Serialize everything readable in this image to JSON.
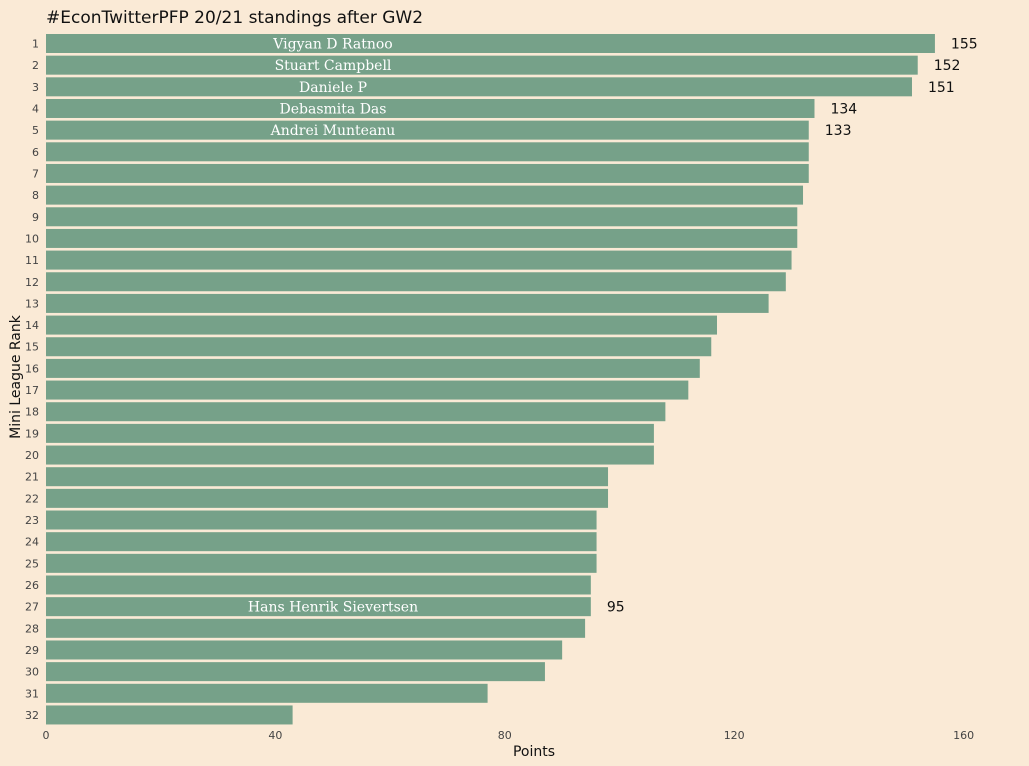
{
  "chart_data": {
    "type": "bar",
    "orientation": "horizontal",
    "title": "#EconTwitterPFP 20/21 standings after GW2",
    "xlabel": "Points",
    "ylabel": "Mini League Rank",
    "xlim": [
      0,
      170
    ],
    "x_ticks": [
      0,
      40,
      80,
      120,
      160
    ],
    "grid": false,
    "bar_color": "#76a189",
    "background_color": "#faead6",
    "categories": [
      "1",
      "2",
      "3",
      "4",
      "5",
      "6",
      "7",
      "8",
      "9",
      "10",
      "11",
      "12",
      "13",
      "14",
      "15",
      "16",
      "17",
      "18",
      "19",
      "20",
      "21",
      "22",
      "23",
      "24",
      "25",
      "26",
      "27",
      "28",
      "29",
      "30",
      "31",
      "32"
    ],
    "values": [
      155,
      152,
      151,
      134,
      133,
      133,
      133,
      132,
      131,
      131,
      130,
      129,
      126,
      117,
      116,
      114,
      112,
      108,
      106,
      106,
      98,
      98,
      96,
      96,
      96,
      95,
      95,
      94,
      90,
      87,
      77,
      43
    ],
    "annotations": [
      {
        "rank": "1",
        "name": "Vigyan D Ratnoo",
        "value_label": "155"
      },
      {
        "rank": "2",
        "name": "Stuart Campbell",
        "value_label": "152"
      },
      {
        "rank": "3",
        "name": "Daniele P",
        "value_label": "151"
      },
      {
        "rank": "4",
        "name": "Debasmita Das",
        "value_label": "134"
      },
      {
        "rank": "5",
        "name": "Andrei Munteanu",
        "value_label": "133"
      },
      {
        "rank": "27",
        "name": "Hans Henrik Sievertsen",
        "value_label": "95"
      }
    ]
  }
}
